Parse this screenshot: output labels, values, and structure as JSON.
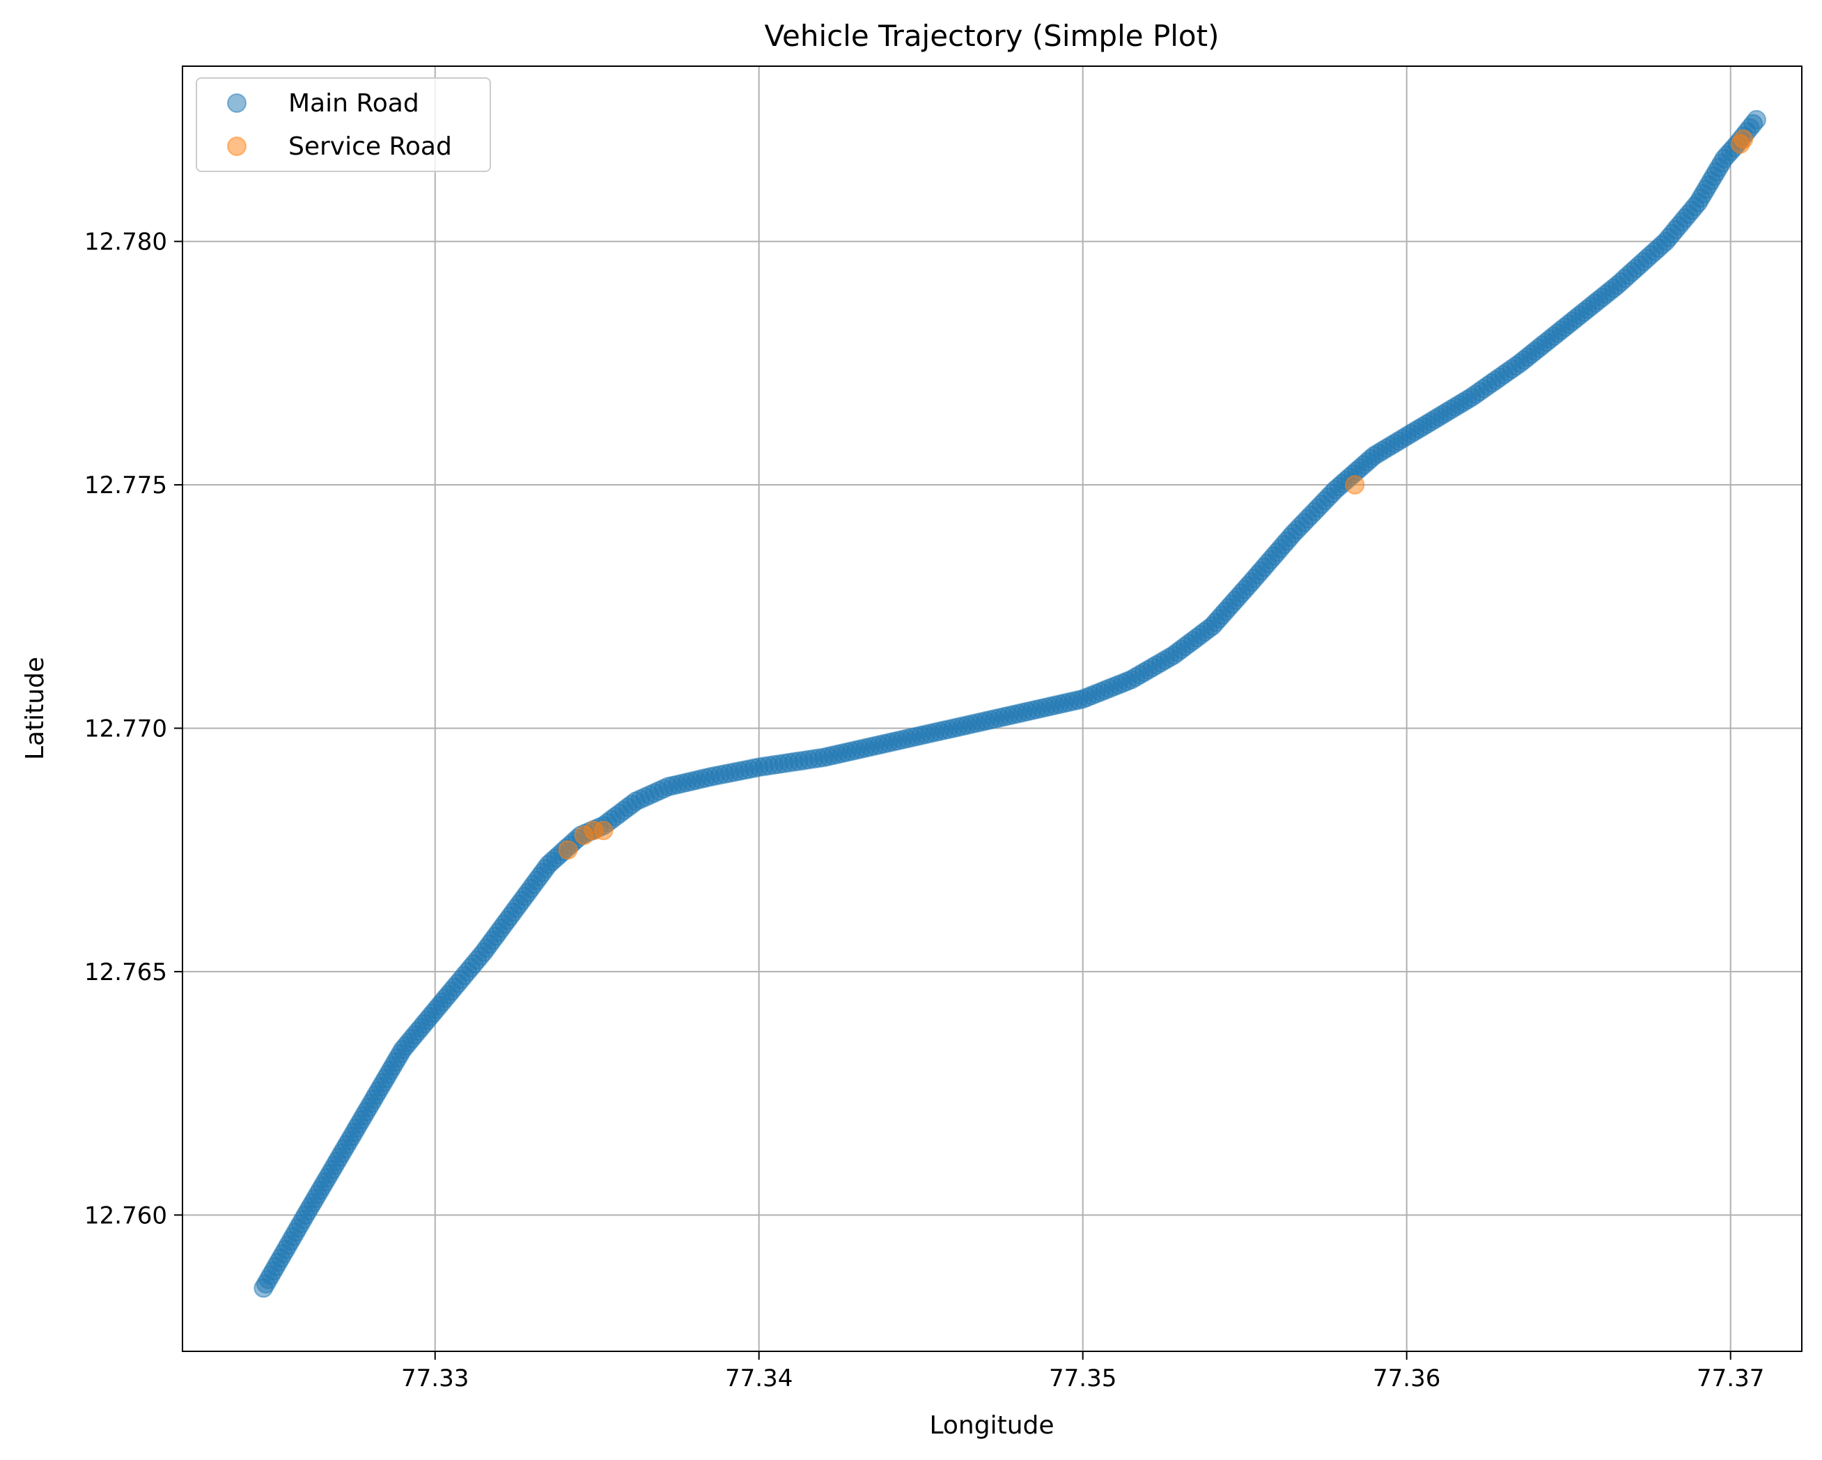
{
  "chart_data": {
    "type": "scatter",
    "title": "Vehicle Trajectory (Simple Plot)",
    "xlabel": "Longitude",
    "ylabel": "Latitude",
    "xlim": [
      77.3222,
      77.3722
    ],
    "ylim": [
      12.7572,
      12.7836
    ],
    "x_ticks": [
      "77.33",
      "77.34",
      "77.35",
      "77.36",
      "77.37"
    ],
    "y_ticks": [
      "12.760",
      "12.765",
      "12.770",
      "12.775",
      "12.780"
    ],
    "grid": true,
    "legend": "top-left",
    "series": [
      {
        "name": "Main Road",
        "color": "#1f77b4",
        "marker": "circle",
        "path": [
          [
            77.3247,
            12.7585
          ],
          [
            77.326,
            12.76
          ],
          [
            77.3275,
            12.7617
          ],
          [
            77.329,
            12.7634
          ],
          [
            77.3305,
            12.7646
          ],
          [
            77.3315,
            12.7654
          ],
          [
            77.3325,
            12.7663
          ],
          [
            77.3335,
            12.7672
          ],
          [
            77.3345,
            12.7678
          ],
          [
            77.3352,
            12.768
          ],
          [
            77.3362,
            12.7685
          ],
          [
            77.3372,
            12.7688
          ],
          [
            77.3385,
            12.769
          ],
          [
            77.34,
            12.7692
          ],
          [
            77.342,
            12.7694
          ],
          [
            77.344,
            12.7697
          ],
          [
            77.346,
            12.77
          ],
          [
            77.348,
            12.7703
          ],
          [
            77.35,
            12.7706
          ],
          [
            77.3515,
            12.771
          ],
          [
            77.3528,
            12.7715
          ],
          [
            77.354,
            12.7721
          ],
          [
            77.3552,
            12.773
          ],
          [
            77.3565,
            12.774
          ],
          [
            77.3578,
            12.7749
          ],
          [
            77.359,
            12.7756
          ],
          [
            77.3605,
            12.7762
          ],
          [
            77.362,
            12.7768
          ],
          [
            77.3635,
            12.7775
          ],
          [
            77.365,
            12.7783
          ],
          [
            77.3665,
            12.7791
          ],
          [
            77.368,
            12.78
          ],
          [
            77.369,
            12.7808
          ],
          [
            77.3698,
            12.7817
          ],
          [
            77.3702,
            12.782
          ],
          [
            77.3708,
            12.7825
          ]
        ]
      },
      {
        "name": "Service Road",
        "color": "#ff7f0e",
        "marker": "circle",
        "points": [
          [
            77.3341,
            12.7675
          ],
          [
            77.3346,
            12.7678
          ],
          [
            77.3349,
            12.7679
          ],
          [
            77.3352,
            12.7679
          ],
          [
            77.3584,
            12.775
          ],
          [
            77.3703,
            12.782
          ],
          [
            77.3704,
            12.7821
          ]
        ]
      }
    ]
  }
}
